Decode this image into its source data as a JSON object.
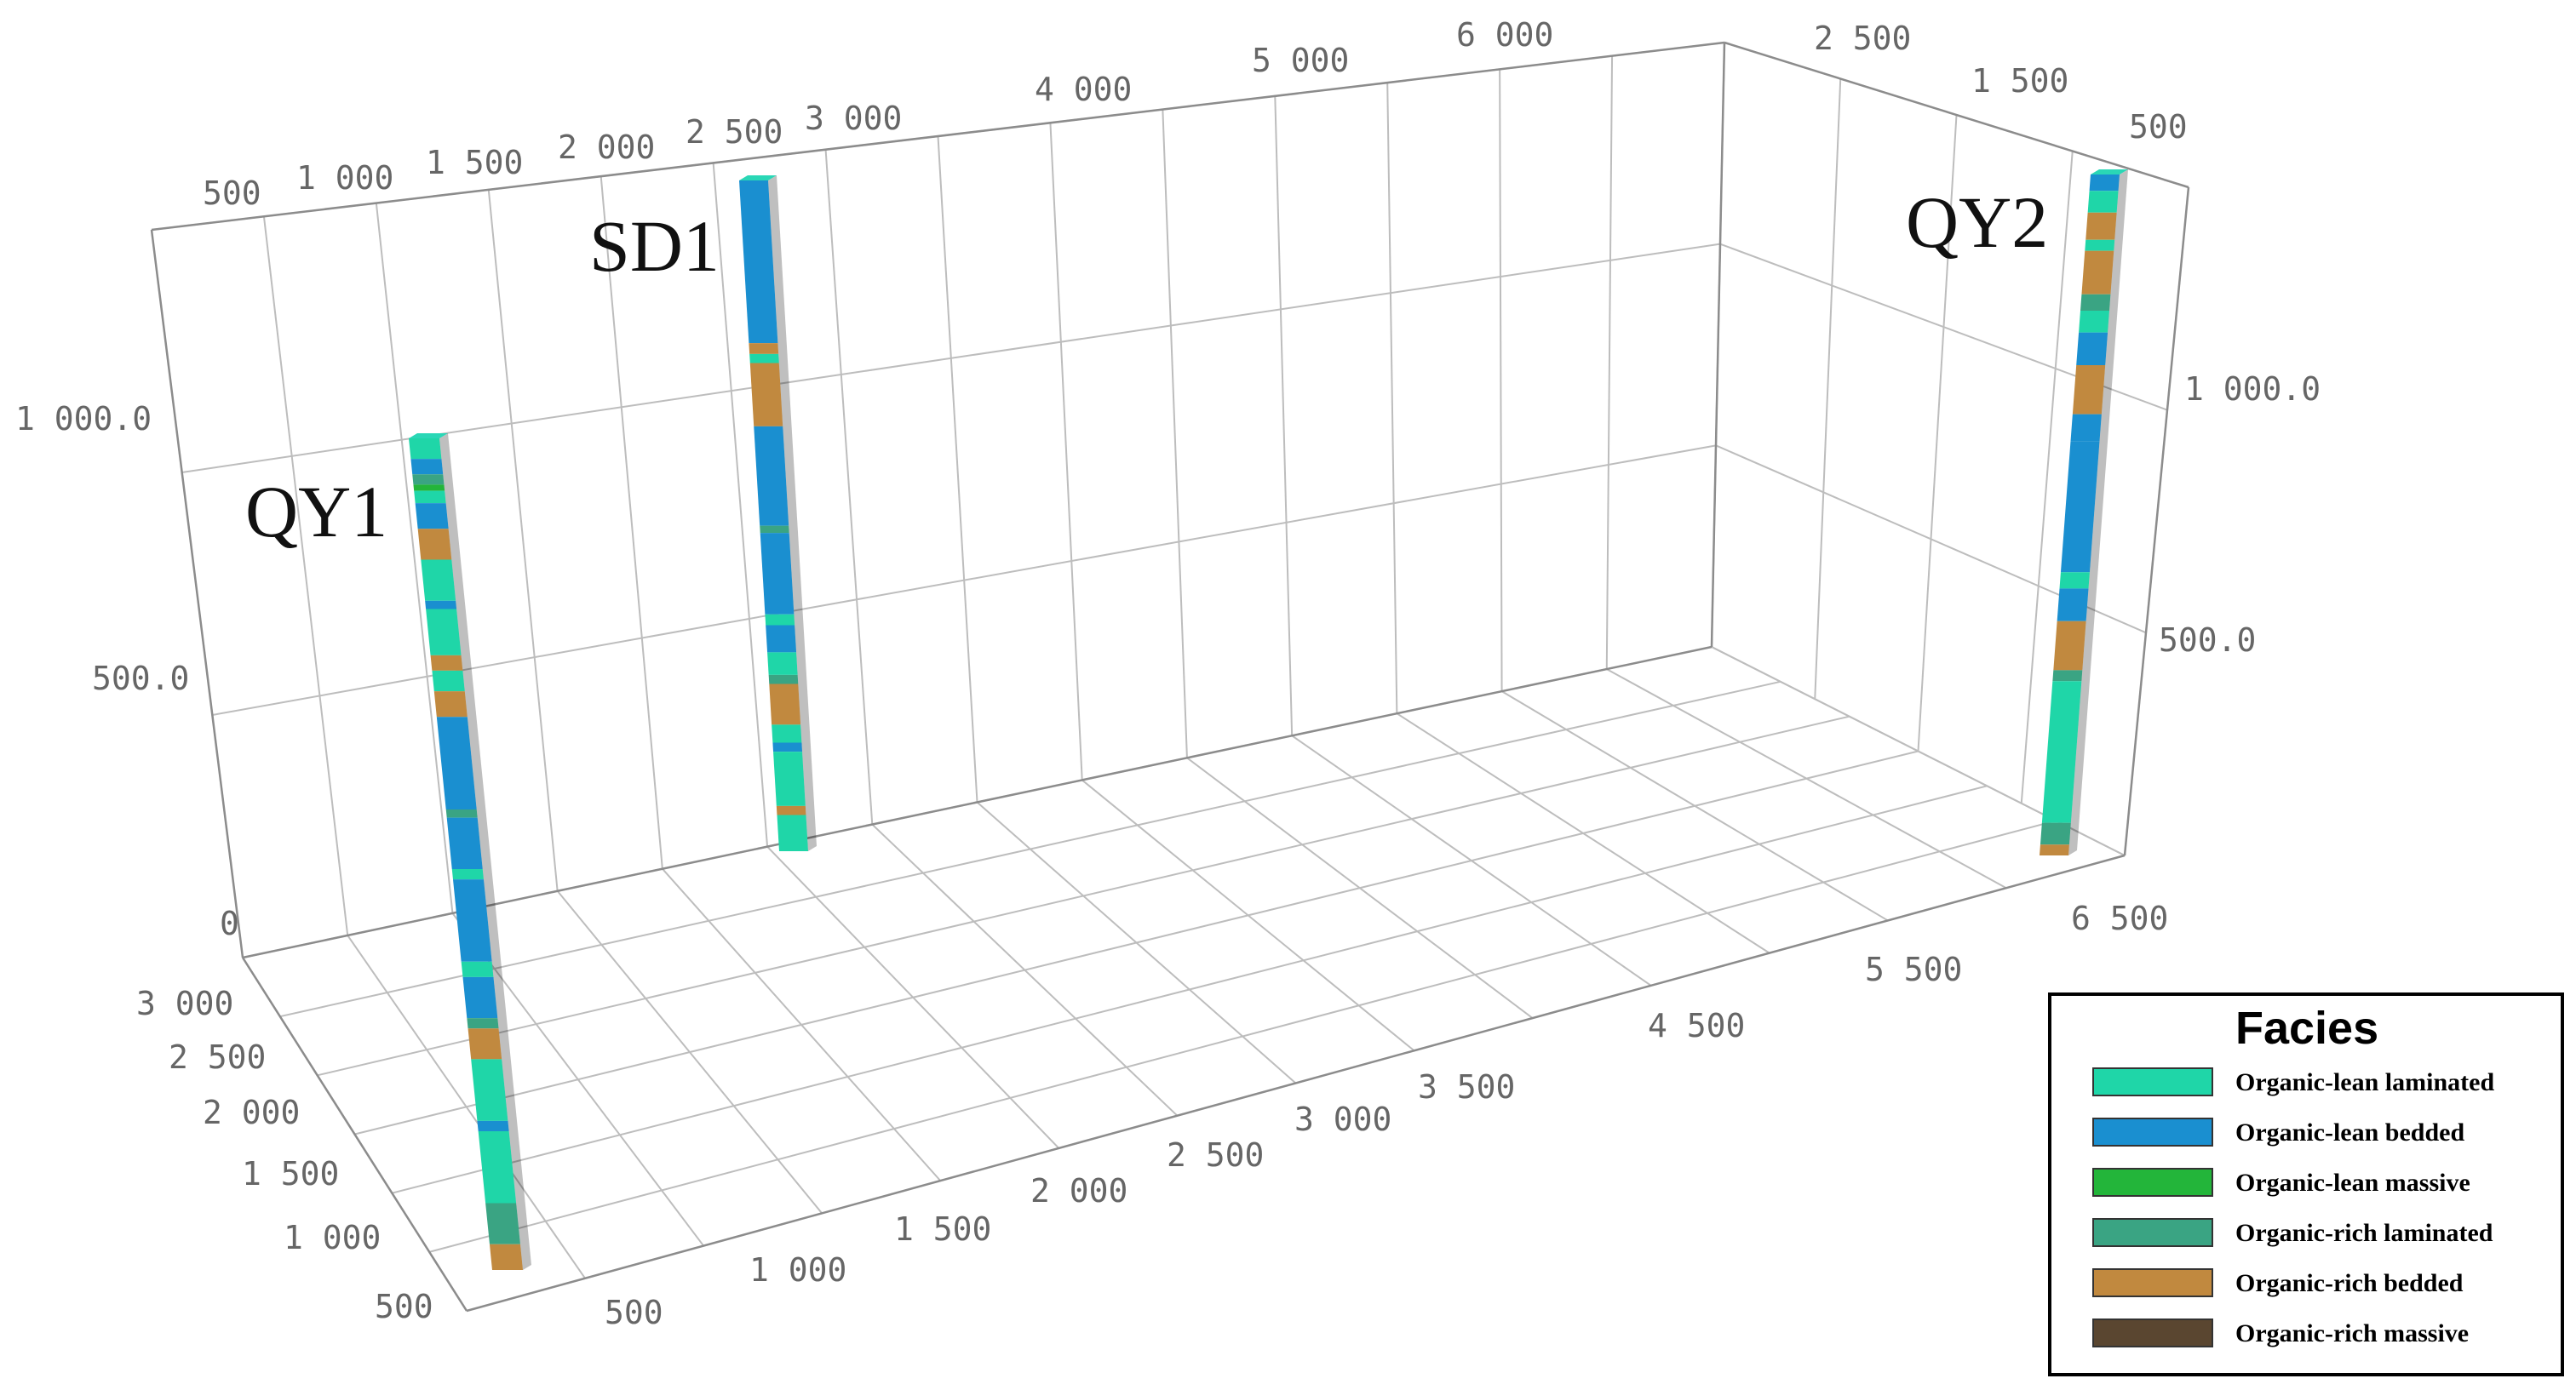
{
  "x_axis_back": {
    "ticks": [
      "500",
      "1 000",
      "1 500",
      "2 000",
      "2 500",
      "3 000",
      "4 000",
      "5 000",
      "6 000"
    ]
  },
  "x_axis_front": {
    "ticks": [
      "500",
      "1 000",
      "1 500",
      "2 000",
      "2 500",
      "3 000",
      "3 500",
      "4 500",
      "5 500",
      "6 500"
    ]
  },
  "y_axis_left": {
    "ticks": [
      "500",
      "1 000",
      "1 500",
      "2 000",
      "2 500",
      "3 000"
    ]
  },
  "y_axis_right": {
    "ticks": [
      "2 500",
      "1 500",
      "500"
    ]
  },
  "z_axis_left": {
    "ticks": [
      "0",
      "500.0",
      "1 000.0"
    ]
  },
  "z_axis_right": {
    "ticks": [
      "500.0",
      "1 000.0"
    ]
  },
  "wells": [
    {
      "name": "QY1"
    },
    {
      "name": "SD1"
    },
    {
      "name": "QY2"
    }
  ],
  "legend": {
    "title": "Facies",
    "items": [
      {
        "label": "Organic-lean laminated",
        "color": "#1fd6a8"
      },
      {
        "label": "Organic-lean bedded",
        "color": "#1a8fd0"
      },
      {
        "label": "Organic-lean massive",
        "color": "#23b53a"
      },
      {
        "label": "Organic-rich laminated",
        "color": "#3aa483"
      },
      {
        "label": "Organic-rich bedded",
        "color": "#c1893f"
      },
      {
        "label": "Organic-rich massive",
        "color": "#5a4630"
      }
    ]
  }
}
